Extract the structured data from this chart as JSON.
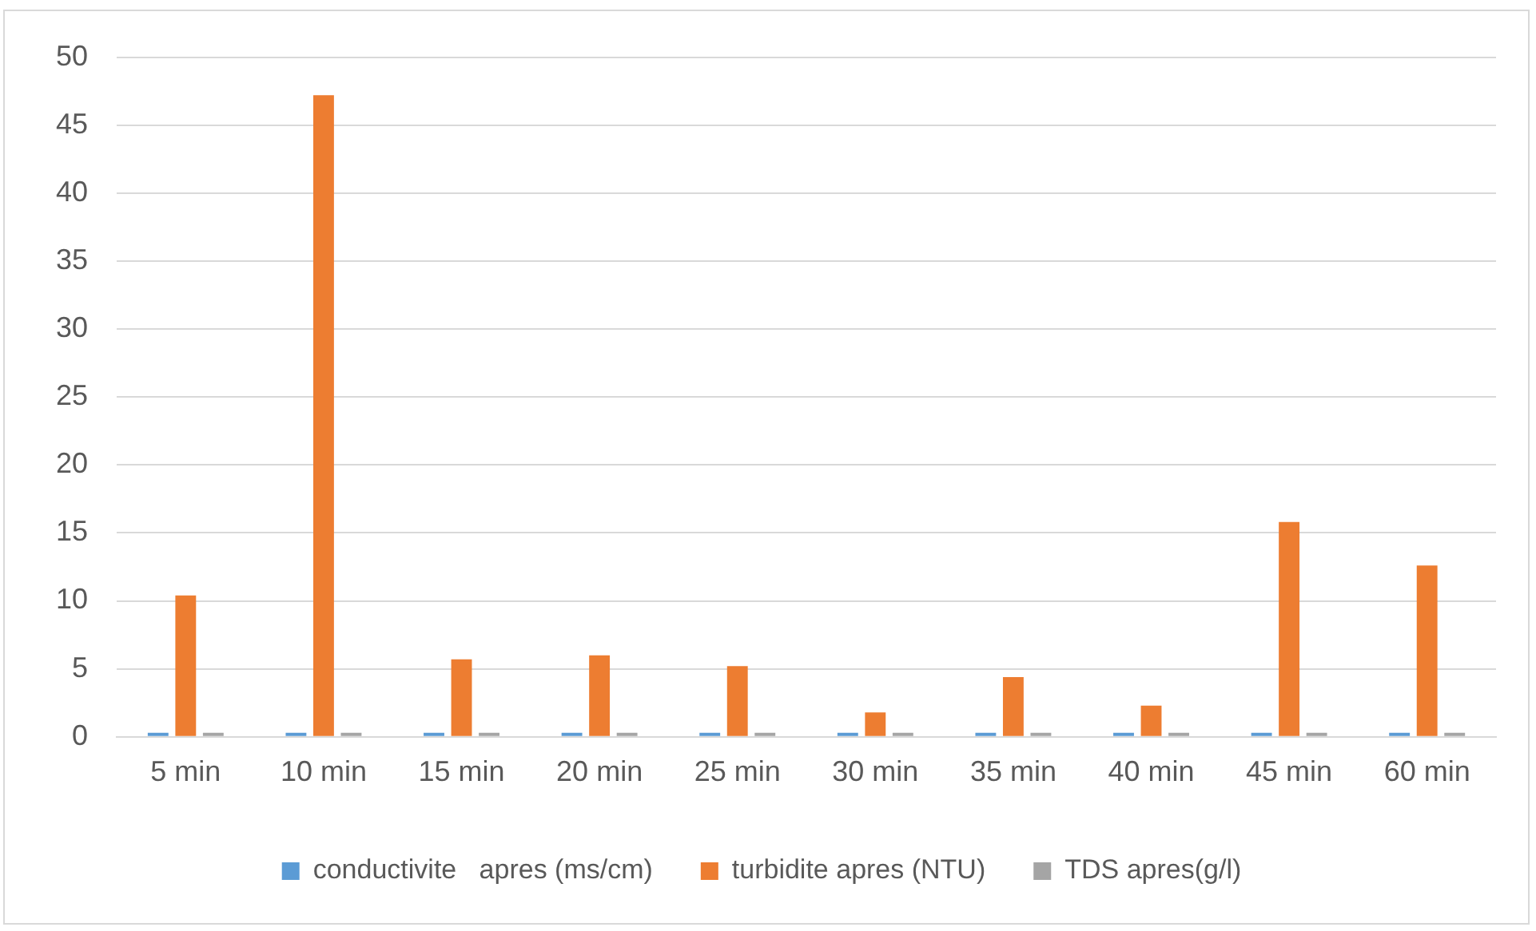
{
  "chart_data": {
    "type": "bar",
    "categories": [
      "5 min",
      "10 min",
      "15 min",
      "20 min",
      "25 min",
      "30 min",
      "35 min",
      "40 min",
      "45 min",
      "60 min"
    ],
    "series": [
      {
        "name": "conductivite   apres (ms/cm)",
        "color": "#5b9bd5",
        "values": [
          0.3,
          0.3,
          0.3,
          0.3,
          0.3,
          0.3,
          0.3,
          0.3,
          0.3,
          0.3
        ]
      },
      {
        "name": "turbidite apres (NTU)",
        "color": "#ed7d31",
        "values": [
          10.4,
          47.2,
          5.7,
          6.0,
          5.2,
          1.8,
          4.4,
          2.3,
          15.8,
          12.6
        ]
      },
      {
        "name": "TDS apres(g/l)",
        "color": "#a5a5a5",
        "values": [
          0.3,
          0.3,
          0.3,
          0.3,
          0.3,
          0.3,
          0.3,
          0.3,
          0.3,
          0.3
        ]
      }
    ],
    "ylim": [
      0,
      50
    ],
    "yticks": [
      0,
      5,
      10,
      15,
      20,
      25,
      30,
      35,
      40,
      45,
      50
    ],
    "grid": "y",
    "legend": "bottom"
  }
}
